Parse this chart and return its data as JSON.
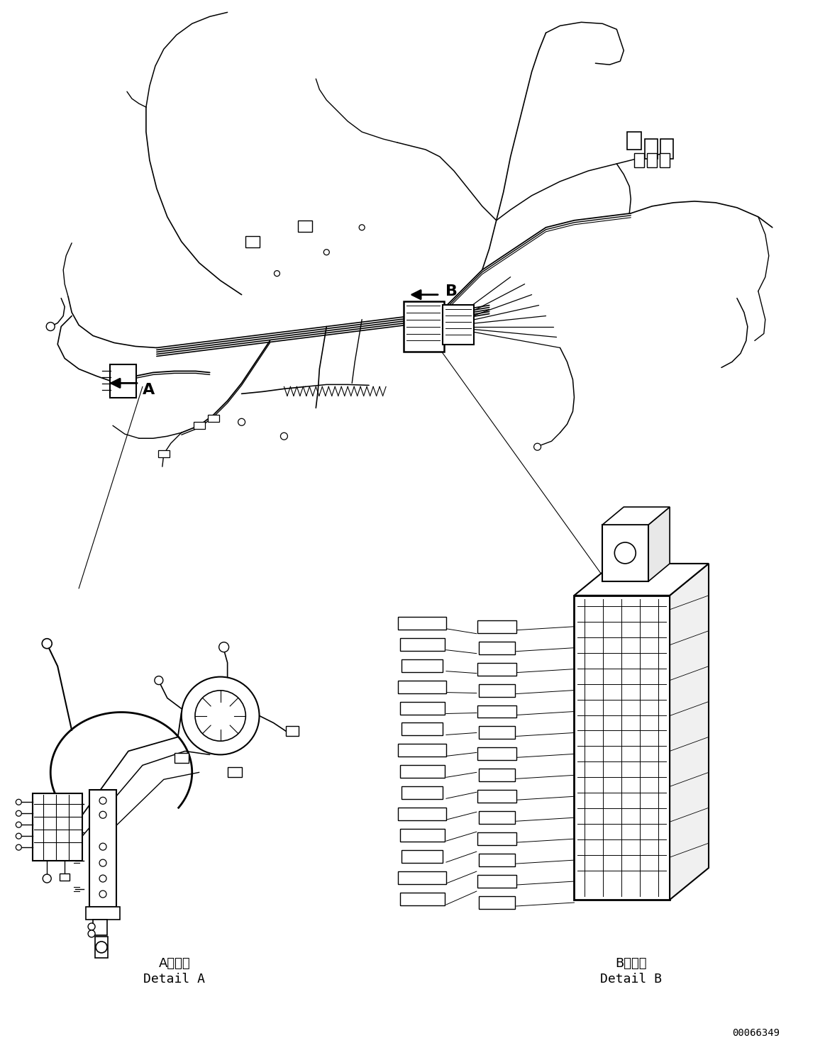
{
  "figsize": [
    11.63,
    14.88
  ],
  "dpi": 100,
  "bg_color": "#ffffff",
  "part_number": "00066349",
  "labels": {
    "A": "A",
    "B": "B",
    "detail_A_jp": "A 詳細",
    "detail_A_en": "Detail A",
    "detail_B_jp": "B 詳細",
    "detail_B_en": "Detail B"
  },
  "line_color": "#000000",
  "line_width": 1.0
}
